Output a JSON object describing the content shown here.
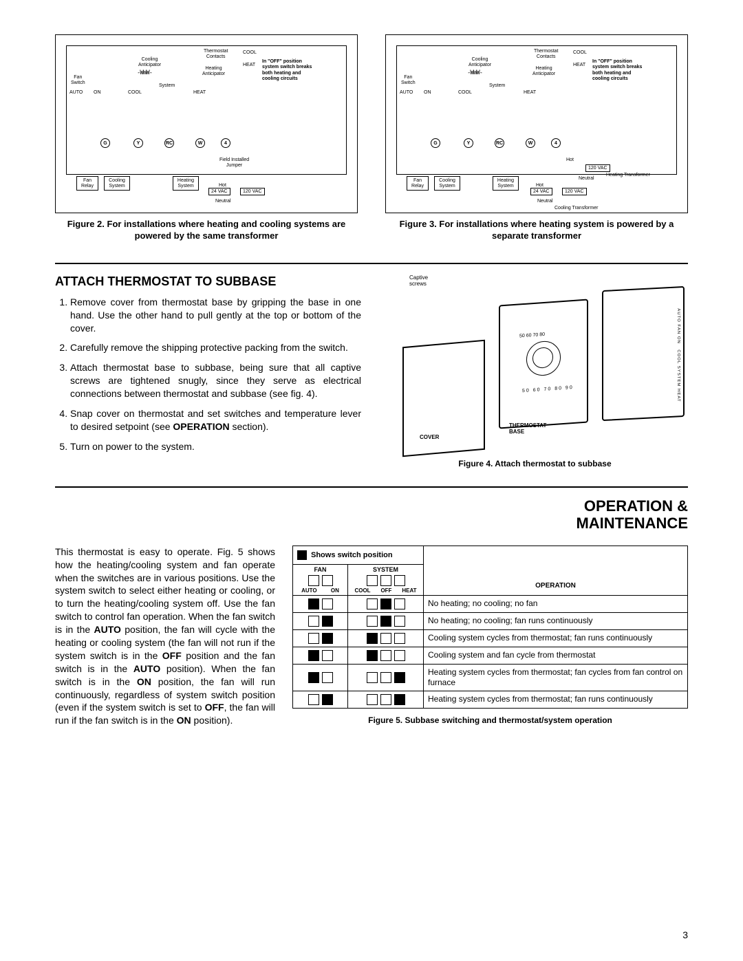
{
  "figures": {
    "fig2": {
      "caption": "Figure 2. For installations where heating and cooling systems are powered by the same transformer",
      "labels": {
        "fan_switch": "Fan\nSwitch",
        "auto": "AUTO",
        "on": "ON",
        "cool": "COOL",
        "cooling_anticipator": "Cooling\nAnticipator",
        "system": "System",
        "heat": "HEAT",
        "thermostat_contacts": "Thermostat\nContacts",
        "heating_anticipator": "Heating\nAnticipator",
        "cool_contact": "COOL",
        "heat_contact": "HEAT",
        "note": "In \"OFF\" position system switch breaks both heating and cooling circuits",
        "terminals": [
          "G",
          "Y",
          "RC",
          "W",
          "4"
        ],
        "field_jumper": "Field Installed\nJumper",
        "fan_relay": "Fan\nRelay",
        "cooling_system": "Cooling\nSystem",
        "heating_system": "Heating\nSystem",
        "hot": "Hot",
        "neutral": "Neutral",
        "vac24": "24 VAC",
        "vac120": "120 VAC"
      }
    },
    "fig3": {
      "caption": "Figure 3. For installations where heating system is powered by a separate transformer",
      "labels": {
        "heating_transformer": "Heating Transformer",
        "cooling_transformer": "Cooling Transformer"
      }
    },
    "fig4": {
      "caption": "Figure 4. Attach thermostat to subbase",
      "labels": {
        "captive_screws": "Captive\nscrews",
        "cover": "COVER",
        "thermostat_base": "THERMOSTAT\nBASE",
        "scale_top": "50 60 70 80",
        "scale_bottom": "50 60 70 80 90"
      }
    },
    "fig5": {
      "caption": "Figure 5. Subbase switching and thermostat/system operation"
    }
  },
  "attach": {
    "heading": "ATTACH THERMOSTAT TO SUBBASE",
    "steps": [
      "Remove cover from thermostat base by gripping the base in one hand. Use the other hand to pull gently at the top or bottom of the cover.",
      "Carefully remove the shipping protective packing from the switch.",
      "Attach thermostat base to subbase, being sure that all captive screws are tightened snugly, since they serve as electrical connections between thermostat and subbase (see fig. 4).",
      "Snap cover on thermostat and set switches and temperature lever to desired setpoint (see OPERATION section).",
      "Turn on power to the system."
    ]
  },
  "operation": {
    "heading": "OPERATION &\nMAINTENANCE",
    "paragraph_parts": {
      "p1": "This thermostat is easy to operate. Fig. 5 shows how the heating/cooling system and fan operate when the switches are in various positions. Use the system switch to select either heating or cooling, or to turn the heating/cooling system off. Use the fan switch to control fan operation. When the fan switch is in the ",
      "p1b": " position, the fan will cycle with the heating or cooling system (the fan will not run if the system switch is in the ",
      "p1c": " position and the fan switch is in the ",
      "p1d": " position). When the fan switch is in the ",
      "p1e": " position, the fan will run continuously, regardless of system switch position (even if the system switch is set to ",
      "p1f": ", the fan will run if the fan switch is in the ",
      "p1g": " position).",
      "b_auto": "AUTO",
      "b_off": "OFF",
      "b_on": "ON"
    },
    "table": {
      "legend": "Shows switch position",
      "headers": {
        "fan": "FAN",
        "system": "SYSTEM",
        "operation": "OPERATION",
        "fan_cols": [
          "AUTO",
          "ON"
        ],
        "system_cols": [
          "COOL",
          "OFF",
          "HEAT"
        ]
      },
      "rows": [
        {
          "fan": [
            true,
            false
          ],
          "system": [
            false,
            true,
            false
          ],
          "desc": "No heating; no cooling; no fan"
        },
        {
          "fan": [
            false,
            true
          ],
          "system": [
            false,
            true,
            false
          ],
          "desc": "No heating; no cooling; fan runs continuously"
        },
        {
          "fan": [
            false,
            true
          ],
          "system": [
            true,
            false,
            false
          ],
          "desc": "Cooling system cycles from thermostat; fan runs continuously"
        },
        {
          "fan": [
            true,
            false
          ],
          "system": [
            true,
            false,
            false
          ],
          "desc": "Cooling system and fan cycle from thermostat"
        },
        {
          "fan": [
            true,
            false
          ],
          "system": [
            false,
            false,
            true
          ],
          "desc": "Heating system cycles from thermostat; fan cycles from fan control on furnace"
        },
        {
          "fan": [
            false,
            true
          ],
          "system": [
            false,
            false,
            true
          ],
          "desc": "Heating system cycles from thermostat; fan runs continuously"
        }
      ]
    }
  },
  "page_number": "3",
  "colors": {
    "text": "#000000",
    "background": "#ffffff",
    "fill": "#000000"
  }
}
